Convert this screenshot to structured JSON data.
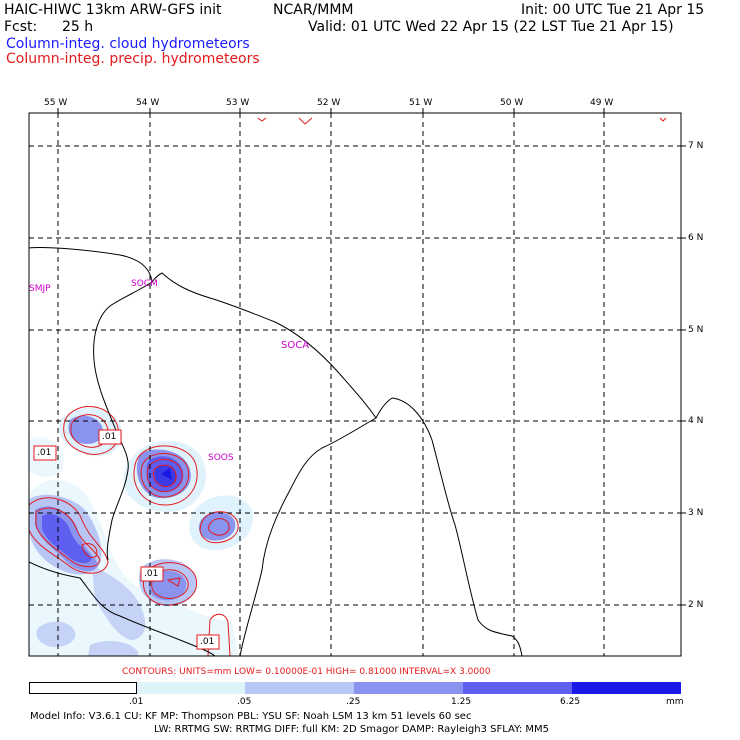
{
  "header": {
    "title": "HAIC-HIWC 13km ARW-GFS init",
    "agency": "NCAR/MMM",
    "init": "Init: 00 UTC Tue 21 Apr 15",
    "fcst_label": "Fcst:",
    "fcst_value": "25 h",
    "valid": "Valid: 01 UTC Wed 22 Apr 15 (22 LST Tue 21 Apr 15)",
    "field1": "Column-integ. cloud hydrometeors",
    "field2": "Column-integ. precip. hydrometeors"
  },
  "colors": {
    "cloud_field": "#1a1aff",
    "precip_field": "#e41a1c",
    "station_labels": "#cc00cc"
  },
  "map": {
    "lon_labels": [
      "55 W",
      "54 W",
      "53 W",
      "52 W",
      "51 W",
      "50 W",
      "49 W"
    ],
    "lat_labels": [
      "7 N",
      "6 N",
      "5 N",
      "4 N",
      "3 N",
      "2 N"
    ],
    "stations": [
      "SMJP",
      "SOCM",
      "SOCA",
      "SOOS"
    ],
    "contour_labels": [
      ".01",
      ".01",
      ".01",
      ".01"
    ]
  },
  "contour_info": {
    "text": "CONTOURS:  UNITS=mm   LOW= 0.10000E-01   HIGH= 0.81000      INTERVAL=X  3.0000"
  },
  "colorbar": {
    "levels": [
      ".01",
      ".05",
      ".25",
      "1.25",
      "6.25"
    ],
    "unit": "mm",
    "colors": [
      "#ffffff",
      "#dff3fb",
      "#b7c6f4",
      "#8a93ee",
      "#5e5ef0",
      "#1a1ae6"
    ]
  },
  "footer": {
    "line1": "Model Info: V3.6.1     CU: KF       MP: Thompson      PBL: YSU        SF: Noah LSM       13 km    51 levels    60 sec",
    "line2": "LW: RRTMG    SW: RRTMG   DIFF: full    KM: 2D Smagor DAMP: Rayleigh3   SFLAY: MM5"
  }
}
